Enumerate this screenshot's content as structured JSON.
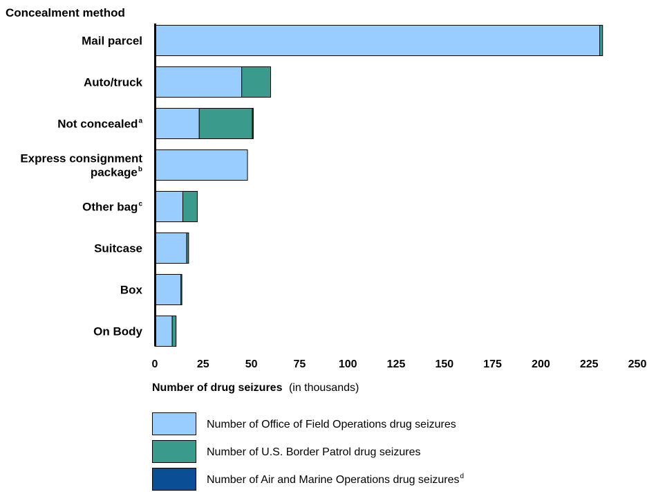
{
  "chart_data": {
    "type": "bar",
    "orientation": "horizontal",
    "stacked": true,
    "y_axis_title": "Concealment method",
    "x_axis_title": {
      "bold": "Number of drug seizures",
      "normal": "(in thousands)"
    },
    "x_ticks": [
      0,
      25,
      50,
      75,
      100,
      125,
      150,
      175,
      200,
      225,
      250
    ],
    "xlim": [
      0,
      250
    ],
    "grid": false,
    "legend_position": "bottom",
    "categories": [
      {
        "lines": [
          "Mail parcel"
        ],
        "sup": ""
      },
      {
        "lines": [
          "Auto/truck"
        ],
        "sup": ""
      },
      {
        "lines": [
          "Not concealed"
        ],
        "sup": "a"
      },
      {
        "lines": [
          "Express consignment",
          "package"
        ],
        "sup": "b"
      },
      {
        "lines": [
          "Other bag"
        ],
        "sup": "c"
      },
      {
        "lines": [
          "Suitcase"
        ],
        "sup": ""
      },
      {
        "lines": [
          "Box"
        ],
        "sup": ""
      },
      {
        "lines": [
          "On Body"
        ],
        "sup": ""
      }
    ],
    "series": [
      {
        "name": "Number of Office of Field Operations drug seizures",
        "sup": "",
        "color": "#99ccff",
        "values": [
          230.5,
          45,
          23,
          48,
          14.5,
          16.5,
          13.5,
          9
        ]
      },
      {
        "name": "Number of U.S. Border Patrol drug seizures",
        "sup": "",
        "color": "#3a9a8c",
        "values": [
          1.5,
          15,
          27.5,
          0,
          7.5,
          1,
          0.5,
          2
        ]
      },
      {
        "name": "Number of Air and Marine Operations drug seizures",
        "sup": "d",
        "color": "#0a4f96",
        "values": [
          0,
          0,
          0.5,
          0,
          0,
          0,
          0,
          0
        ]
      }
    ]
  }
}
